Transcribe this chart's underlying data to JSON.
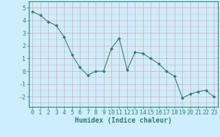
{
  "x": [
    0,
    1,
    2,
    3,
    4,
    5,
    6,
    7,
    8,
    9,
    10,
    11,
    12,
    13,
    14,
    15,
    16,
    17,
    18,
    19,
    20,
    21,
    22,
    23
  ],
  "y": [
    4.7,
    4.4,
    3.9,
    3.6,
    2.7,
    1.3,
    0.3,
    -0.3,
    0.0,
    0.0,
    1.8,
    2.6,
    0.1,
    1.5,
    1.4,
    1.0,
    0.6,
    0.0,
    -0.4,
    -2.1,
    -1.8,
    -1.6,
    -1.5,
    -2.0
  ],
  "line_color": "#2e7d6e",
  "marker": "D",
  "marker_size": 2,
  "bg_color": "#cceeff",
  "grid_color": "#e8a0a0",
  "xlabel": "Humidex (Indice chaleur)",
  "xlim": [
    -0.5,
    23.5
  ],
  "ylim": [
    -2.8,
    5.5
  ],
  "yticks": [
    -2,
    -1,
    0,
    1,
    2,
    3,
    4,
    5
  ],
  "xticks": [
    0,
    1,
    2,
    3,
    4,
    5,
    6,
    7,
    8,
    9,
    10,
    11,
    12,
    13,
    14,
    15,
    16,
    17,
    18,
    19,
    20,
    21,
    22,
    23
  ],
  "font_color": "#2e7d6e",
  "tick_fontsize": 6,
  "xlabel_fontsize": 7
}
